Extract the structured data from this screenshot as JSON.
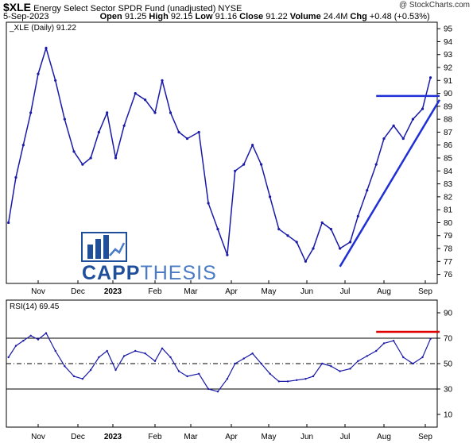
{
  "header": {
    "ticker": "$XLE",
    "name": "Energy Select Sector SPDR Fund (unadjusted)",
    "exchange": "NYSE",
    "brand": "@ StockCharts.com",
    "date": "5-Sep-2023",
    "open_label": "Open",
    "open": "91.25",
    "high_label": "High",
    "high": "92.15",
    "low_label": "Low",
    "low": "91.16",
    "close_label": "Close",
    "close": "91.22",
    "volume_label": "Volume",
    "volume": "24.4M",
    "chg_label": "Chg",
    "chg": "+0.48 (+0.53%)"
  },
  "logo": {
    "part1": "CAPP",
    "part2": "THESIS"
  },
  "colors": {
    "price": "#1a1aa8",
    "trendline": "#1f2fd6",
    "resistance": "#e00000",
    "grid": "#000000"
  },
  "chart_data": [
    {
      "type": "line",
      "legend": "_XLE (Daily) 91.22",
      "x_tick_labels": [
        "Nov",
        "Dec",
        "2023",
        "Feb",
        "Mar",
        "Apr",
        "May",
        "Jun",
        "Jul",
        "Aug",
        "Sep"
      ],
      "y_tick_labels": [
        "95",
        "94",
        "93",
        "92",
        "91",
        "90",
        "89",
        "88",
        "87",
        "86",
        "85",
        "84",
        "83",
        "82",
        "81",
        "80",
        "79",
        "78",
        "77",
        "76"
      ],
      "ylim": [
        75.3,
        95.5
      ],
      "x": [
        "Oct 3",
        "Oct 10",
        "Oct 17",
        "Oct 24",
        "Oct 31",
        "Nov 7",
        "Nov 14",
        "Nov 21",
        "Nov 28",
        "Dec 5",
        "Dec 12",
        "Dec 19",
        "Dec 26",
        "Jan 3",
        "Jan 9",
        "Jan 17",
        "Jan 24",
        "Jan 31",
        "Feb 7",
        "Feb 14",
        "Feb 21",
        "Feb 28",
        "Mar 7",
        "Mar 14",
        "Mar 21",
        "Mar 28",
        "Apr 4",
        "Apr 11",
        "Apr 18",
        "Apr 25",
        "May 2",
        "May 9",
        "May 16",
        "May 23",
        "May 30",
        "Jun 6",
        "Jun 13",
        "Jun 20",
        "Jun 27",
        "Jul 5",
        "Jul 11",
        "Jul 18",
        "Jul 25",
        "Aug 1",
        "Aug 8",
        "Aug 15",
        "Aug 22",
        "Aug 29",
        "Sep 5"
      ],
      "y": [
        80.0,
        83.5,
        86.0,
        88.5,
        91.5,
        93.5,
        91.0,
        88.0,
        85.5,
        84.5,
        85.0,
        87.0,
        88.5,
        85.0,
        87.5,
        90.0,
        89.5,
        88.5,
        91.0,
        88.5,
        87.0,
        86.5,
        87.0,
        81.5,
        79.5,
        77.5,
        84.0,
        84.5,
        86.0,
        84.5,
        82.0,
        79.5,
        79.0,
        78.5,
        77.0,
        78.0,
        80.0,
        79.5,
        78.0,
        78.5,
        80.5,
        82.5,
        84.5,
        86.5,
        87.5,
        86.5,
        88.0,
        88.8,
        91.22
      ],
      "annotations": {
        "support_trendline": [
          [
            "Jun 27",
            76.6
          ],
          [
            "Sep 12",
            89.5
          ]
        ],
        "resistance": 89.8
      }
    },
    {
      "type": "line",
      "legend": "RSI(14) 69.45",
      "x_tick_labels": [
        "Nov",
        "Dec",
        "2023",
        "Feb",
        "Mar",
        "Apr",
        "May",
        "Jun",
        "Jul",
        "Aug",
        "Sep"
      ],
      "y_tick_labels": [
        "90",
        "70",
        "50",
        "30",
        "10"
      ],
      "ylim": [
        0,
        100
      ],
      "reference_lines": [
        70,
        50,
        30
      ],
      "x": [
        "Oct 3",
        "Oct 10",
        "Oct 17",
        "Oct 24",
        "Oct 31",
        "Nov 7",
        "Nov 14",
        "Nov 21",
        "Nov 28",
        "Dec 5",
        "Dec 12",
        "Dec 19",
        "Dec 26",
        "Jan 3",
        "Jan 9",
        "Jan 17",
        "Jan 24",
        "Jan 31",
        "Feb 7",
        "Feb 14",
        "Feb 21",
        "Feb 28",
        "Mar 7",
        "Mar 14",
        "Mar 21",
        "Mar 28",
        "Apr 4",
        "Apr 11",
        "Apr 18",
        "Apr 25",
        "May 2",
        "May 9",
        "May 16",
        "May 23",
        "May 30",
        "Jun 6",
        "Jun 13",
        "Jun 20",
        "Jun 27",
        "Jul 5",
        "Jul 11",
        "Jul 18",
        "Jul 25",
        "Aug 1",
        "Aug 8",
        "Aug 15",
        "Aug 22",
        "Aug 29",
        "Sep 5"
      ],
      "y": [
        55,
        64,
        68,
        72,
        69,
        74,
        60,
        48,
        40,
        38,
        45,
        55,
        60,
        45,
        56,
        60,
        58,
        52,
        62,
        55,
        44,
        40,
        42,
        30,
        28,
        38,
        50,
        54,
        58,
        50,
        42,
        36,
        36,
        37,
        38,
        40,
        50,
        48,
        44,
        46,
        52,
        56,
        60,
        66,
        68,
        55,
        50,
        55,
        69.45
      ],
      "annotations": {
        "resistance_level": 75
      }
    }
  ]
}
